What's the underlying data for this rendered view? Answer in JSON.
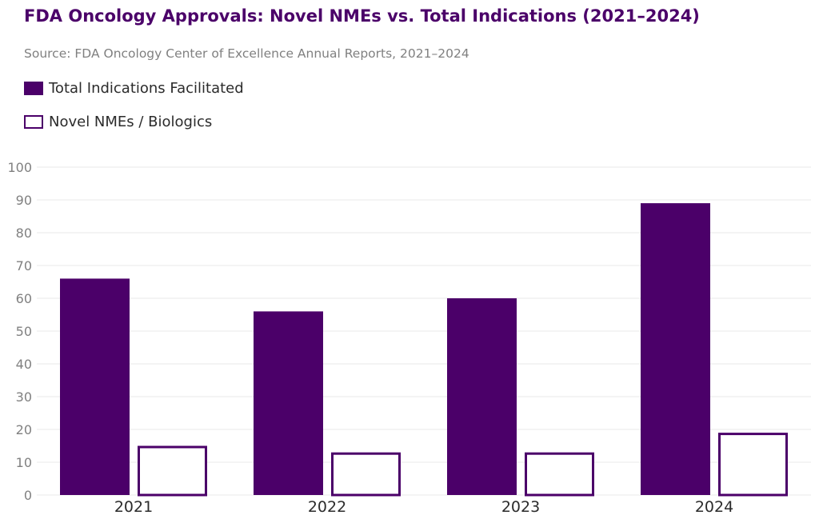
{
  "chart_data": {
    "type": "bar",
    "title": "FDA Oncology Approvals: Novel NMEs vs. Total Indications (2021–2024)",
    "subtitle": "Source: FDA Oncology Center of Excellence Annual Reports, 2021–2024",
    "categories": [
      "2021",
      "2022",
      "2023",
      "2024"
    ],
    "series": [
      {
        "name": "Total Indications Facilitated",
        "values": [
          66,
          56,
          60,
          89
        ],
        "style": "filled",
        "color": "#4b0069"
      },
      {
        "name": "Novel NMEs / Biologics",
        "values": [
          15,
          13,
          13,
          19
        ],
        "style": "outline",
        "color": "#4b0069"
      }
    ],
    "ylim": [
      0,
      100
    ],
    "yticks": [
      "0",
      "10",
      "20",
      "30",
      "40",
      "50",
      "60",
      "70",
      "80",
      "90",
      "100"
    ],
    "grid": true,
    "legend_position": "top-left",
    "xlabel": "",
    "ylabel": ""
  }
}
